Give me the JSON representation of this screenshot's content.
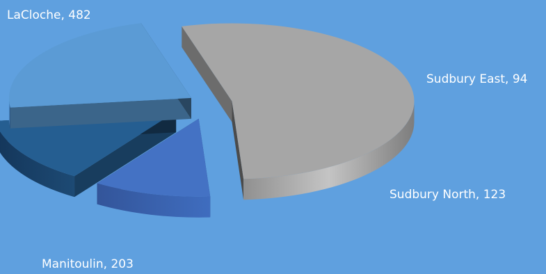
{
  "chart_data": {
    "type": "pie",
    "style": "3d-exploded",
    "slices": [
      {
        "name": "LaCloche",
        "value": 482,
        "label": "LaCloche, 482",
        "color": "#a6a6a6"
      },
      {
        "name": "Sudbury East",
        "value": 94,
        "label": "Sudbury East, 94",
        "color": "#4472c4"
      },
      {
        "name": "Sudbury North",
        "value": 123,
        "label": "Sudbury North, 123",
        "color": "#255e91"
      },
      {
        "name": "Manitoulin",
        "value": 203,
        "label": "Manitoulin, 203",
        "color": "#5b9bd5"
      }
    ]
  }
}
